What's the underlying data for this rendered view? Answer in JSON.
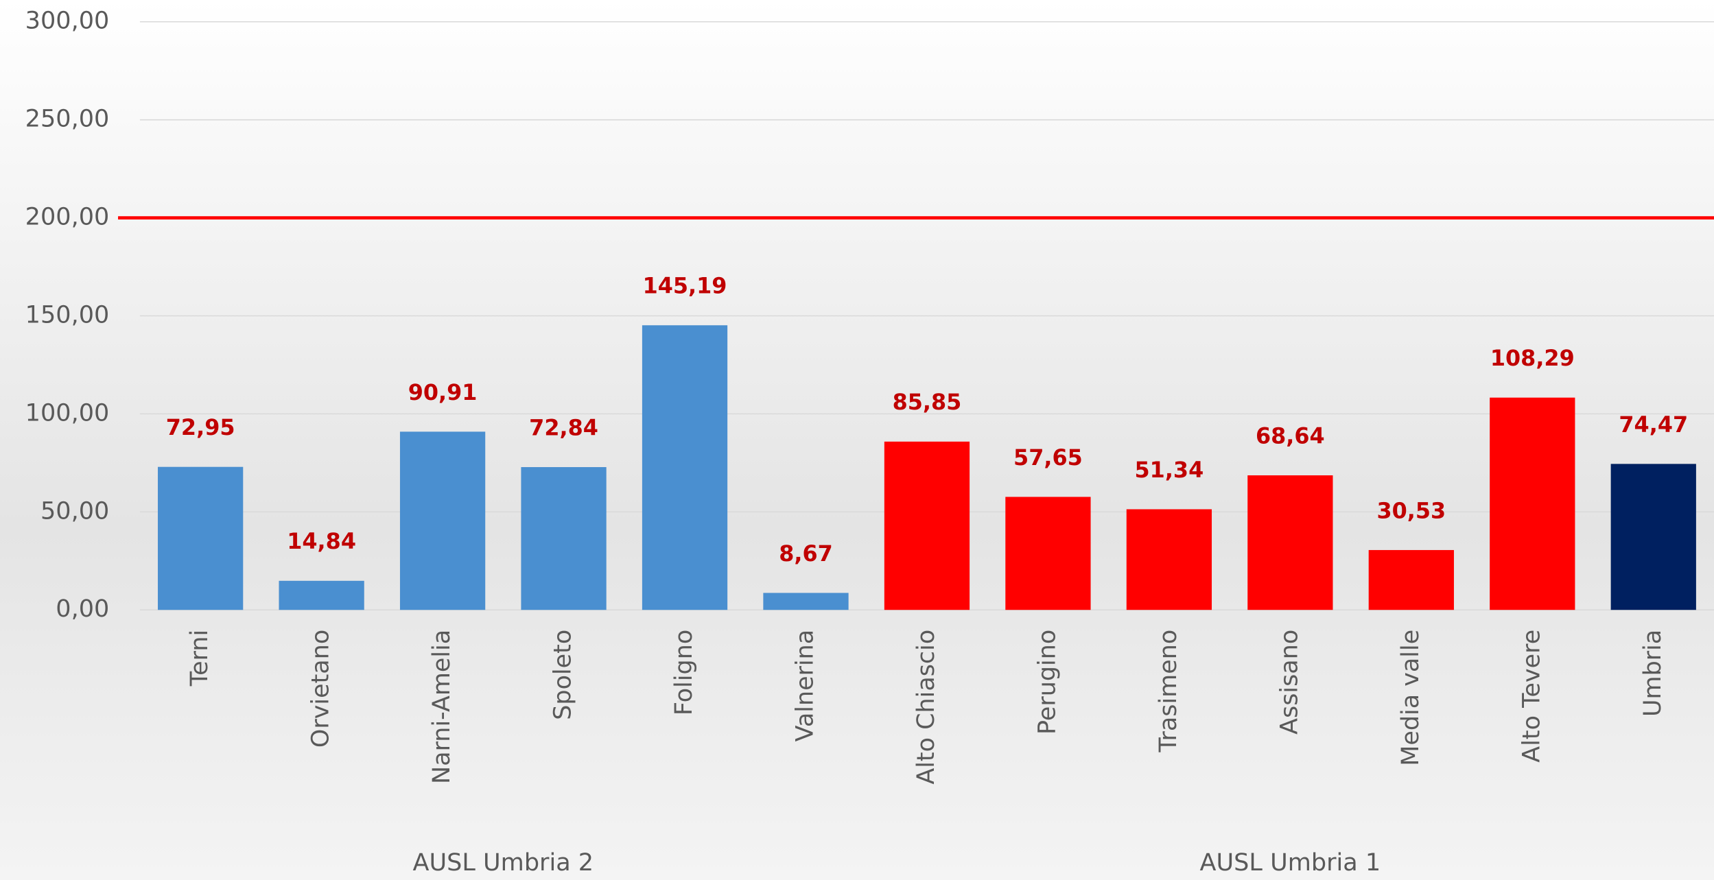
{
  "chart_data": {
    "type": "bar",
    "categories": [
      "Terni",
      "Orvietano",
      "Narni-Amelia",
      "Spoleto",
      "Foligno",
      "Valnerina",
      "Alto Chiascio",
      "Perugino",
      "Trasimeno",
      "Assisano",
      "Media valle",
      "Alto Tevere",
      "Umbria"
    ],
    "values": [
      72.95,
      14.84,
      90.91,
      72.84,
      145.19,
      8.67,
      85.85,
      57.65,
      51.34,
      68.64,
      30.53,
      108.29,
      74.47
    ],
    "value_labels": [
      "72,95",
      "14,84",
      "90,91",
      "72,84",
      "145,19",
      "8,67",
      "85,85",
      "57,65",
      "51,34",
      "68,64",
      "30,53",
      "108,29",
      "74,47"
    ],
    "colors": [
      "#4a8fd0",
      "#4a8fd0",
      "#4a8fd0",
      "#4a8fd0",
      "#4a8fd0",
      "#4a8fd0",
      "#ff0000",
      "#ff0000",
      "#ff0000",
      "#ff0000",
      "#ff0000",
      "#ff0000",
      "#002060"
    ],
    "groups": [
      {
        "label": "AUSL Umbria 2",
        "count": 6
      },
      {
        "label": "AUSL Umbria 1",
        "count": 7
      }
    ],
    "reference_line": {
      "value": 200,
      "color": "#ff0000"
    },
    "ylim": [
      0,
      300
    ],
    "yticks": [
      {
        "value": 0,
        "label": "0,00"
      },
      {
        "value": 50,
        "label": "50,00"
      },
      {
        "value": 100,
        "label": "100,00"
      },
      {
        "value": 150,
        "label": "150,00"
      },
      {
        "value": 200,
        "label": "200,00"
      },
      {
        "value": 250,
        "label": "250,00"
      },
      {
        "value": 300,
        "label": "300,00"
      }
    ],
    "grid": true
  }
}
